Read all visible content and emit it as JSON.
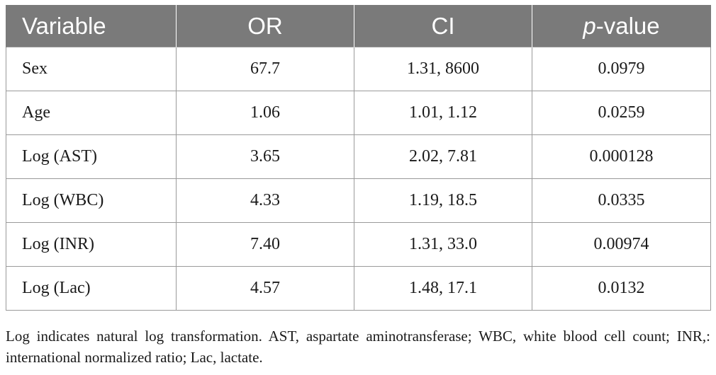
{
  "header": {
    "variable": "Variable",
    "or": "OR",
    "ci": "CI",
    "p_italic": "p",
    "p_rest": "-value"
  },
  "rows": [
    {
      "variable": "Sex",
      "or": "67.7",
      "ci": "1.31, 8600",
      "p": "0.0979"
    },
    {
      "variable": "Age",
      "or": "1.06",
      "ci": "1.01, 1.12",
      "p": "0.0259"
    },
    {
      "variable": "Log (AST)",
      "or": "3.65",
      "ci": "2.02, 7.81",
      "p": "0.000128"
    },
    {
      "variable": "Log (WBC)",
      "or": "4.33",
      "ci": "1.19, 18.5",
      "p": "0.0335"
    },
    {
      "variable": "Log (INR)",
      "or": "7.40",
      "ci": "1.31, 33.0",
      "p": "0.00974"
    },
    {
      "variable": "Log (Lac)",
      "or": "4.57",
      "ci": "1.48, 17.1",
      "p": "0.0132"
    }
  ],
  "footnote": "Log indicates natural log transformation. AST, aspartate aminotransferase; WBC, white blood cell count; INR,: international normalized ratio; Lac, lactate.",
  "colors": {
    "header_bg": "#7a7a7a",
    "header_text": "#ffffff",
    "border": "#9a9a9a"
  }
}
